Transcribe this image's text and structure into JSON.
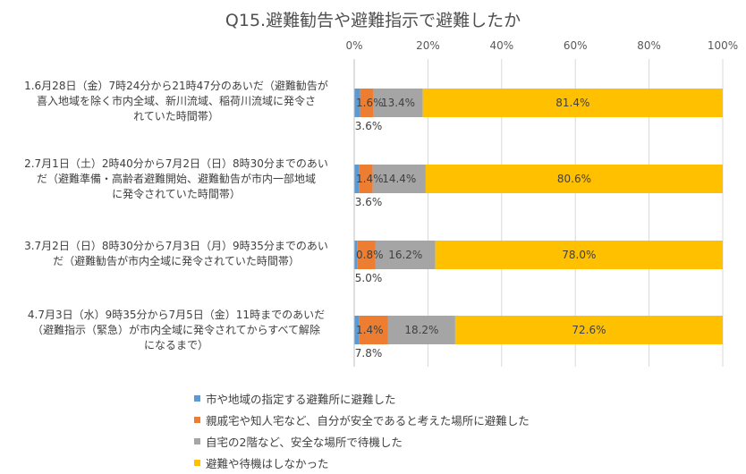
{
  "chart_data": {
    "type": "bar",
    "orientation": "horizontal",
    "stacked": true,
    "title": "Q15.避難勧告や避難指示で避難したか",
    "xlim": [
      0,
      100
    ],
    "x_ticks": [
      "0%",
      "20%",
      "40%",
      "60%",
      "80%",
      "100%"
    ],
    "grid": true,
    "legend_position": "bottom",
    "categories": [
      "1.6月28日（金）7時24分から21時47分のあいだ（避難勧告が喜入地域を除く市内全域、新川流域、稲荷川流域に発令されていた時間帯）",
      "2.7月1日（土）2時40分から7月2日（日）8時30分までのあいだ（避難準備・高齢者避難開始、避難勧告が市内一部地域に発令されていた時間帯）",
      "3.7月2日（日）8時30分から7月3日（月）9時35分までのあいだ（避難勧告が市内全域に発令されていた時間帯）",
      "4.7月3日（水）9時35分から7月5日（金）11時までのあいだ（避難指示（緊急）が市内全域に発令されてからすべて解除になるまで）"
    ],
    "category_lines": [
      [
        "1.6月28日（金）7時24分から21時47分のあいだ（避難勧告が",
        "喜入地域を除く市内全域、新川流域、稲荷川流域に発令さ",
        "れていた時間帯）"
      ],
      [
        "2.7月1日（土）2時40分から7月2日（日）8時30分までのあい",
        "だ（避難準備・高齢者避難開始、避難勧告が市内一部地域",
        "に発令されていた時間帯）"
      ],
      [
        "3.7月2日（日）8時30分から7月3日（月）9時35分までのあい",
        "だ（避難勧告が市内全域に発令されていた時間帯）"
      ],
      [
        "4.7月3日（水）9時35分から7月5日（金）11時までのあいだ",
        "（避難指示（緊急）が市内全域に発令されてからすべて解除",
        "になるまで）"
      ]
    ],
    "series": [
      {
        "name": "市や地域の指定する避難所に避難した",
        "color": "#5B9BD5",
        "values": [
          1.6,
          1.4,
          0.8,
          1.4
        ],
        "labels": [
          "1.6%",
          "1.4%",
          "0.8%",
          "1.4%"
        ]
      },
      {
        "name": "親戚宅や知人宅など、自分が安全であると考えた場所に避難した",
        "color": "#ED7D31",
        "values": [
          3.6,
          3.6,
          5.0,
          7.8
        ],
        "labels": [
          "3.6%",
          "3.6%",
          "5.0%",
          "7.8%"
        ]
      },
      {
        "name": "自宅の2階など、安全な場所で待機した",
        "color": "#A5A5A5",
        "values": [
          13.4,
          14.4,
          16.2,
          18.2
        ],
        "labels": [
          "13.4%",
          "14.4%",
          "16.2%",
          "18.2%"
        ]
      },
      {
        "name": "避難や待機はしなかった",
        "color": "#FFC000",
        "values": [
          81.4,
          80.6,
          78.0,
          72.6
        ],
        "labels": [
          "81.4%",
          "80.6%",
          "78.0%",
          "72.6%"
        ]
      }
    ]
  }
}
